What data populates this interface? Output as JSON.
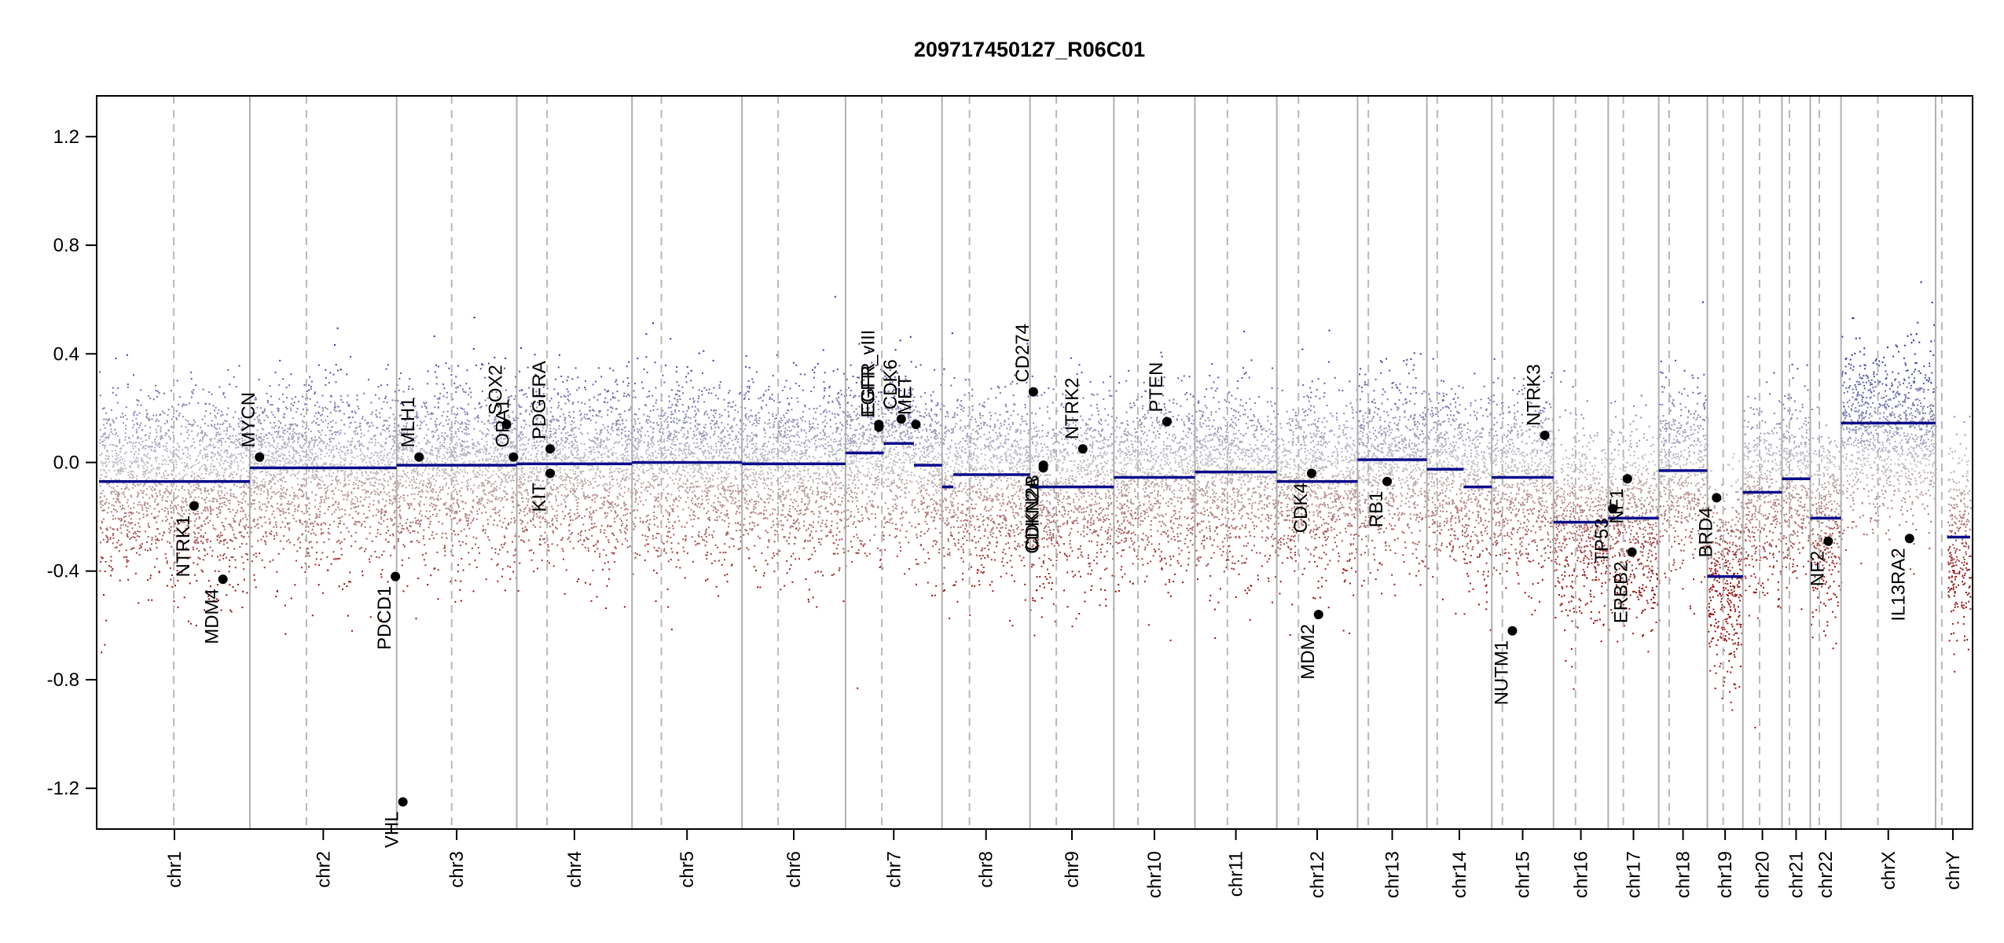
{
  "chart_data": {
    "type": "scatter",
    "title": "209717450127_R06C01",
    "xlabel": "",
    "ylabel": "",
    "ylim": [
      -1.35,
      1.35
    ],
    "y_ticks": [
      1.2,
      0.8,
      0.4,
      0.0,
      -0.4,
      -0.8,
      -1.2
    ],
    "y_tick_labels": [
      "1.2",
      "0.8",
      "0.4",
      "0.0",
      "-0.4",
      "-0.8",
      "-1.2"
    ],
    "grid": false,
    "colors": {
      "segment": "#0b0b8a",
      "gain_points": "#3a3aa0",
      "loss_points": "#9b1010",
      "neutral_points": "#b4b4b4",
      "chr_border": "#b0b0b0",
      "centromere": "#b8b8b8",
      "gene_marker": "#000000"
    },
    "chromosomes": [
      {
        "name": "chr1",
        "start": 0,
        "end": 248.96
      },
      {
        "name": "chr2",
        "start": 248.96,
        "end": 491.15
      },
      {
        "name": "chr3",
        "start": 491.15,
        "end": 689.45
      },
      {
        "name": "chr4",
        "start": 689.45,
        "end": 879.66
      },
      {
        "name": "chr5",
        "start": 879.66,
        "end": 1061.2
      },
      {
        "name": "chr6",
        "start": 1061.2,
        "end": 1232.0
      },
      {
        "name": "chr7",
        "start": 1232.0,
        "end": 1391.3
      },
      {
        "name": "chr8",
        "start": 1391.3,
        "end": 1536.5
      },
      {
        "name": "chr9",
        "start": 1536.5,
        "end": 1674.9
      },
      {
        "name": "chr10",
        "start": 1674.9,
        "end": 1808.7
      },
      {
        "name": "chr11",
        "start": 1808.7,
        "end": 1943.8
      },
      {
        "name": "chr12",
        "start": 1943.8,
        "end": 2077.1
      },
      {
        "name": "chr13",
        "start": 2077.1,
        "end": 2191.5
      },
      {
        "name": "chr14",
        "start": 2191.5,
        "end": 2298.6
      },
      {
        "name": "chr15",
        "start": 2298.6,
        "end": 2400.5
      },
      {
        "name": "chr16",
        "start": 2400.5,
        "end": 2490.8
      },
      {
        "name": "chr17",
        "start": 2490.8,
        "end": 2574.1
      },
      {
        "name": "chr18",
        "start": 2574.1,
        "end": 2654.4
      },
      {
        "name": "chr19",
        "start": 2654.4,
        "end": 2713.0
      },
      {
        "name": "chr20",
        "start": 2713.0,
        "end": 2777.5
      },
      {
        "name": "chr21",
        "start": 2777.5,
        "end": 2824.2
      },
      {
        "name": "chr22",
        "start": 2824.2,
        "end": 2875.0
      },
      {
        "name": "chrX",
        "start": 2875.0,
        "end": 3031.0
      },
      {
        "name": "chrY",
        "start": 3031.0,
        "end": 3088.2
      }
    ],
    "centromeres": [
      123.4,
      342.3,
      582.0,
      739.5,
      928.1,
      1120.8,
      1292.0,
      1436.6,
      1579.9,
      1714.7,
      1862.3,
      1979.6,
      2094.9,
      2208.6,
      2316.1,
      2436.8,
      2515.7,
      2591.4,
      2680.5,
      2740.6,
      2789.9,
      2839.2,
      2935.8,
      3041.4
    ],
    "series": [
      {
        "name": "",
        "segments": [
          {
            "start": 0,
            "end": 248.96,
            "value": -0.07
          },
          {
            "start": 248.96,
            "end": 491.15,
            "value": -0.02
          },
          {
            "start": 491.15,
            "end": 689.45,
            "value": -0.01
          },
          {
            "start": 689.45,
            "end": 879.66,
            "value": -0.005
          },
          {
            "start": 879.66,
            "end": 1061.2,
            "value": 0.0
          },
          {
            "start": 1061.2,
            "end": 1232.0,
            "value": -0.005
          },
          {
            "start": 1232.0,
            "end": 1295.0,
            "value": 0.035
          },
          {
            "start": 1295.0,
            "end": 1345.0,
            "value": 0.07
          },
          {
            "start": 1345.0,
            "end": 1391.3,
            "value": -0.01
          },
          {
            "start": 1391.3,
            "end": 1410.0,
            "value": -0.09
          },
          {
            "start": 1410.0,
            "end": 1536.5,
            "value": -0.045
          },
          {
            "start": 1536.5,
            "end": 1674.9,
            "value": -0.09
          },
          {
            "start": 1674.9,
            "end": 1808.7,
            "value": -0.055
          },
          {
            "start": 1808.7,
            "end": 1943.8,
            "value": -0.035
          },
          {
            "start": 1943.8,
            "end": 2077.1,
            "value": -0.07
          },
          {
            "start": 2077.1,
            "end": 2191.5,
            "value": 0.01
          },
          {
            "start": 2191.5,
            "end": 2252.0,
            "value": -0.025
          },
          {
            "start": 2252.0,
            "end": 2298.6,
            "value": -0.09
          },
          {
            "start": 2298.6,
            "end": 2400.5,
            "value": -0.055
          },
          {
            "start": 2400.5,
            "end": 2490.8,
            "value": -0.22
          },
          {
            "start": 2490.8,
            "end": 2574.1,
            "value": -0.205
          },
          {
            "start": 2574.1,
            "end": 2654.4,
            "value": -0.03
          },
          {
            "start": 2654.4,
            "end": 2713.0,
            "value": -0.42
          },
          {
            "start": 2713.0,
            "end": 2777.5,
            "value": -0.11
          },
          {
            "start": 2777.5,
            "end": 2824.2,
            "value": -0.06
          },
          {
            "start": 2824.2,
            "end": 2875.0,
            "value": -0.205
          },
          {
            "start": 2875.0,
            "end": 3031.0,
            "value": 0.145
          },
          {
            "start": 3050.0,
            "end": 3088.2,
            "value": -0.275
          }
        ]
      }
    ],
    "genes": [
      {
        "name": "NTRK1",
        "x": 156.8,
        "y": -0.16
      },
      {
        "name": "MDM4",
        "x": 204.5,
        "y": -0.43
      },
      {
        "name": "MYCN",
        "x": 264.9,
        "y": 0.02
      },
      {
        "name": "PDCD1",
        "x": 489.2,
        "y": -0.42
      },
      {
        "name": "VHL",
        "x": 501.5,
        "y": -1.25
      },
      {
        "name": "MLH1",
        "x": 528.2,
        "y": 0.02
      },
      {
        "name": "SOX2",
        "x": 672.6,
        "y": 0.14
      },
      {
        "name": "OPA1",
        "x": 684.0,
        "y": 0.02
      },
      {
        "name": "PDGFRA",
        "x": 744.5,
        "y": 0.05
      },
      {
        "name": "KIT",
        "x": 744.6,
        "y": -0.04
      },
      {
        "name": "EGFR",
        "x": 1287.1,
        "y": 0.14
      },
      {
        "name": "EGFR_vIII",
        "x": 1287.2,
        "y": 0.13
      },
      {
        "name": "CDK6",
        "x": 1324.0,
        "y": 0.16
      },
      {
        "name": "MET",
        "x": 1348.2,
        "y": 0.14
      },
      {
        "name": "CD274",
        "x": 1542.0,
        "y": 0.26
      },
      {
        "name": "CDKN2A",
        "x": 1558.4,
        "y": -0.02
      },
      {
        "name": "CDKN2B",
        "x": 1558.5,
        "y": -0.01
      },
      {
        "name": "NTRK2",
        "x": 1623.6,
        "y": 0.05
      },
      {
        "name": "PTEN",
        "x": 1762.5,
        "y": 0.15
      },
      {
        "name": "CDK4",
        "x": 2001.2,
        "y": -0.04
      },
      {
        "name": "MDM2",
        "x": 2012.7,
        "y": -0.56
      },
      {
        "name": "RB1",
        "x": 2125.9,
        "y": -0.07
      },
      {
        "name": "NUTM1",
        "x": 2332.6,
        "y": -0.62
      },
      {
        "name": "NTRK3",
        "x": 2386.1,
        "y": 0.1
      },
      {
        "name": "TP53",
        "x": 2498.3,
        "y": -0.17
      },
      {
        "name": "NF1",
        "x": 2522.5,
        "y": -0.06
      },
      {
        "name": "ERBB2",
        "x": 2530.0,
        "y": -0.33
      },
      {
        "name": "BRD4",
        "x": 2669.6,
        "y": -0.13
      },
      {
        "name": "NF2",
        "x": 2853.9,
        "y": -0.29
      },
      {
        "name": "IL13RA2",
        "x": 2988.0,
        "y": -0.28
      }
    ]
  }
}
